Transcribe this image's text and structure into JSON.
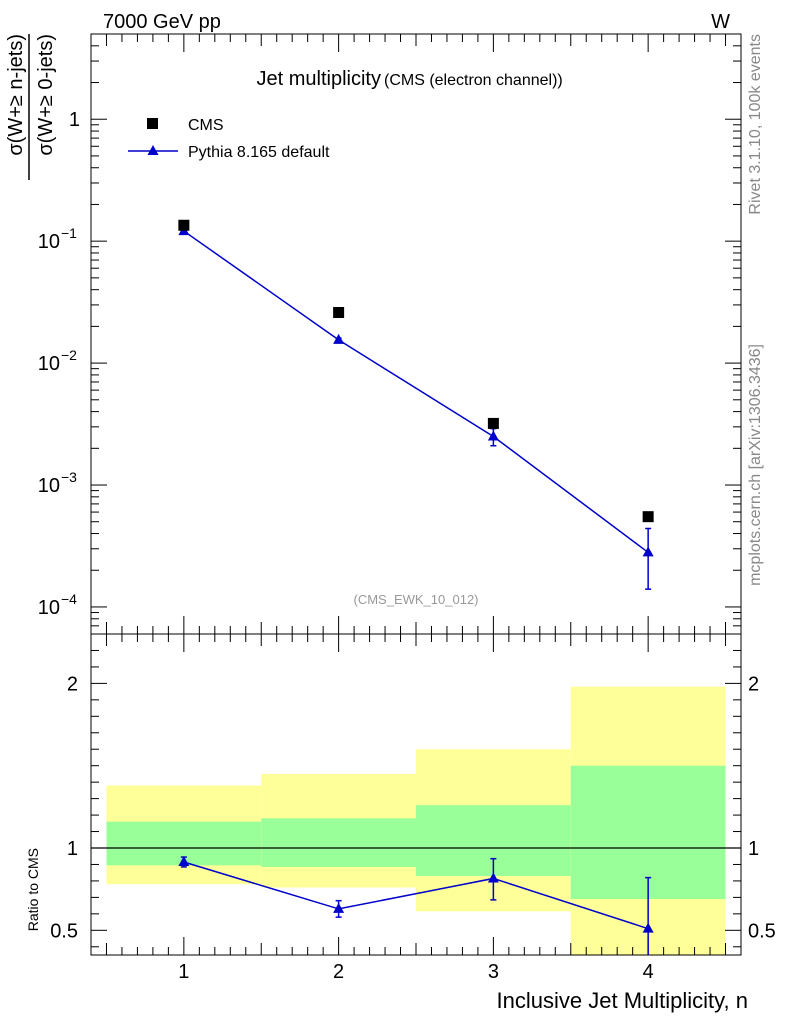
{
  "header": {
    "left": "7000 GeV pp",
    "right": "W"
  },
  "side_text": {
    "rivet": "Rivet 3.1.10,  100k events",
    "mcplots": "mcplots.cern.ch [arXiv:1306.3436]"
  },
  "colors": {
    "mc": "#0000cc",
    "green_band": "#99ff99",
    "yellow_band": "#ffff99",
    "data": "#000000",
    "watermark": "#999999"
  },
  "chart_data": [
    {
      "type": "scatter",
      "panel": "main",
      "title": "Jet multiplicity",
      "subtitle": "(CMS (electron channel))",
      "watermark": "(CMS_EWK_10_012)",
      "ylabel_num": "σ(W+≥ n-jets)",
      "ylabel_den": "σ(W+≥ 0-jets)",
      "yscale": "log",
      "ylim": [
        6e-05,
        5
      ],
      "xlim": [
        0.4,
        4.6
      ],
      "ytick_labels": [
        {
          "base": "10",
          "exp": "−4",
          "value": 0.0001
        },
        {
          "base": "10",
          "exp": "−3",
          "value": 0.001
        },
        {
          "base": "10",
          "exp": "−2",
          "value": 0.01
        },
        {
          "base": "10",
          "exp": "−1",
          "value": 0.1
        },
        {
          "base": "1",
          "exp": "",
          "value": 1
        }
      ],
      "legend": {
        "position": "top-left",
        "entries": [
          "CMS",
          "Pythia 8.165 default"
        ]
      },
      "series": [
        {
          "name": "CMS",
          "marker": "square",
          "x": [
            1,
            2,
            3,
            4
          ],
          "y": [
            0.135,
            0.026,
            0.0032,
            0.00055
          ]
        },
        {
          "name": "Pythia 8.165 default",
          "marker": "triangle",
          "x": [
            1,
            2,
            3,
            4
          ],
          "y": [
            0.121,
            0.0155,
            0.0025,
            0.00028
          ],
          "err_low": [
            0.003,
            0.0005,
            0.0004,
            0.00014
          ],
          "err_high": [
            0.003,
            0.0005,
            0.0004,
            0.00016
          ]
        }
      ]
    },
    {
      "type": "scatter",
      "panel": "ratio",
      "ylabel": "Ratio to CMS",
      "xlabel": "Inclusive Jet Multiplicity, n",
      "ylim": [
        0.35,
        2.3
      ],
      "xlim": [
        0.4,
        4.6
      ],
      "ytick_labels": [
        "0.5",
        "1",
        "2"
      ],
      "ytick_values": [
        0.5,
        1,
        2
      ],
      "xtick_labels": [
        "1",
        "2",
        "3",
        "4"
      ],
      "xtick_values": [
        1,
        2,
        3,
        4
      ],
      "bands": [
        {
          "xlo": 0.5,
          "xhi": 1.5,
          "green": [
            0.895,
            1.16
          ],
          "yellow": [
            0.78,
            1.38
          ]
        },
        {
          "xlo": 1.5,
          "xhi": 2.5,
          "green": [
            0.885,
            1.18
          ],
          "yellow": [
            0.76,
            1.45
          ]
        },
        {
          "xlo": 2.5,
          "xhi": 3.5,
          "green": [
            0.83,
            1.26
          ],
          "yellow": [
            0.615,
            1.6
          ]
        },
        {
          "xlo": 3.5,
          "xhi": 4.5,
          "green": [
            0.69,
            1.5
          ],
          "yellow": [
            0.3,
            1.98
          ]
        }
      ],
      "series": [
        {
          "name": "Pythia 8.165 default",
          "x": [
            1,
            2,
            3,
            4
          ],
          "y": [
            0.915,
            0.63,
            0.815,
            0.51
          ],
          "err_low": [
            0.03,
            0.05,
            0.13,
            0.23
          ],
          "err_high": [
            0.03,
            0.05,
            0.12,
            0.31
          ]
        }
      ]
    }
  ]
}
